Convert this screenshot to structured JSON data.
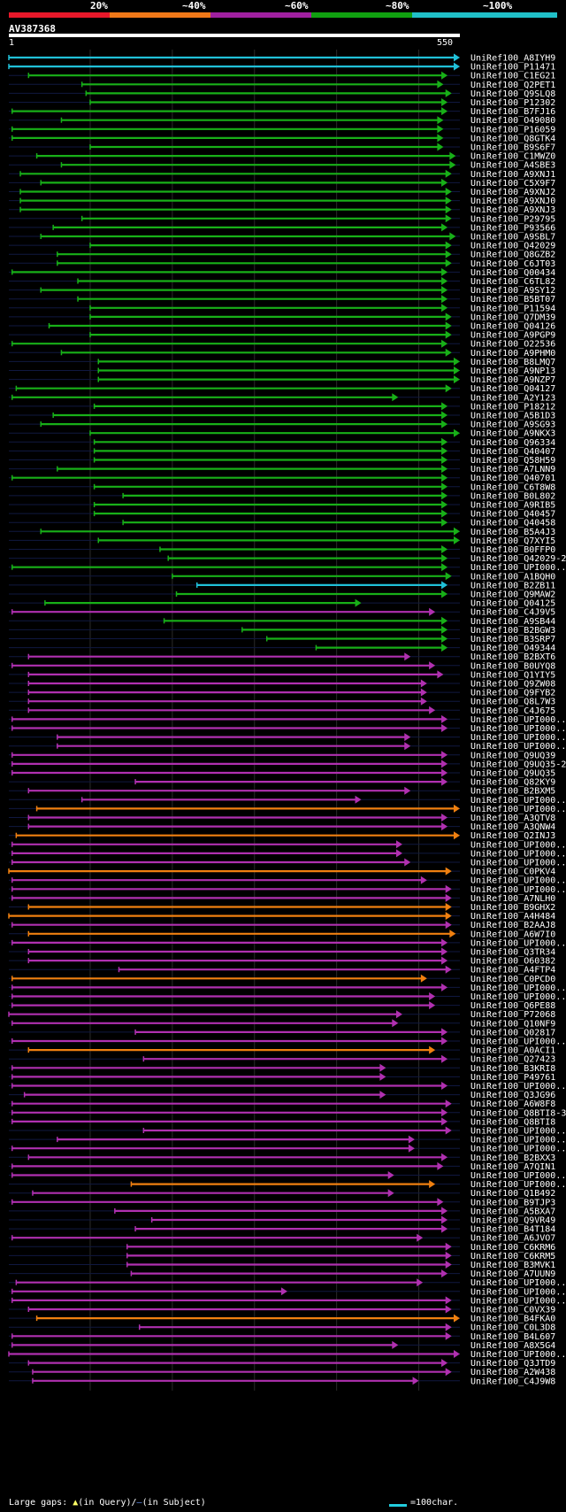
{
  "legend": {
    "labels": [
      "20%",
      "~40%",
      "~60%",
      "~80%",
      "~100%"
    ],
    "colors": [
      "#e8182a",
      "#f07818",
      "#a020a0",
      "#10a010",
      "#20c0c8"
    ]
  },
  "query": {
    "name": "AV387368",
    "start": "1",
    "end": "550"
  },
  "footer": {
    "gap_prefix": "Large gaps:",
    "gap_query": "(in Query)/",
    "gap_subject": "(in Subject)",
    "scale_label": "=100char."
  },
  "chart_data": {
    "type": "alignment-overview",
    "query_length": 550,
    "hits": [
      {
        "name": "UniRef100_A8IYH9",
        "start": 1,
        "end": 550,
        "color": "cyan"
      },
      {
        "name": "UniRef100_P11471",
        "start": 1,
        "end": 550,
        "color": "cyan"
      },
      {
        "name": "UniRef100_C1EG21",
        "start": 25,
        "end": 535,
        "color": "green"
      },
      {
        "name": "UniRef100_Q2PET1",
        "start": 90,
        "end": 530,
        "color": "green"
      },
      {
        "name": "UniRef100_Q9SLQ8",
        "start": 95,
        "end": 540,
        "color": "green"
      },
      {
        "name": "UniRef100_P12302",
        "start": 100,
        "end": 535,
        "color": "green"
      },
      {
        "name": "UniRef100_B7FJ16",
        "start": 5,
        "end": 535,
        "color": "green"
      },
      {
        "name": "UniRef100_O49080",
        "start": 65,
        "end": 530,
        "color": "green"
      },
      {
        "name": "UniRef100_P16059",
        "start": 5,
        "end": 530,
        "color": "green"
      },
      {
        "name": "UniRef100_Q8GTK4",
        "start": 5,
        "end": 530,
        "color": "green"
      },
      {
        "name": "UniRef100_B9S6F7",
        "start": 100,
        "end": 530,
        "color": "green"
      },
      {
        "name": "UniRef100_C1MWZ0",
        "start": 35,
        "end": 545,
        "color": "green"
      },
      {
        "name": "UniRef100_A4SBE3",
        "start": 65,
        "end": 545,
        "color": "green"
      },
      {
        "name": "UniRef100_A9XNJ1",
        "start": 15,
        "end": 540,
        "color": "green"
      },
      {
        "name": "UniRef100_C5X9F7",
        "start": 40,
        "end": 535,
        "color": "green"
      },
      {
        "name": "UniRef100_A9XNJ2",
        "start": 15,
        "end": 540,
        "color": "green"
      },
      {
        "name": "UniRef100_A9XNJ0",
        "start": 15,
        "end": 540,
        "color": "green"
      },
      {
        "name": "UniRef100_A9XNJ3",
        "start": 15,
        "end": 540,
        "color": "green"
      },
      {
        "name": "UniRef100_P29795",
        "start": 90,
        "end": 540,
        "color": "green"
      },
      {
        "name": "UniRef100_P93566",
        "start": 55,
        "end": 535,
        "color": "green"
      },
      {
        "name": "UniRef100_A9SBL7",
        "start": 40,
        "end": 545,
        "color": "green"
      },
      {
        "name": "UniRef100_Q42029",
        "start": 100,
        "end": 540,
        "color": "green"
      },
      {
        "name": "UniRef100_Q8GZB2",
        "start": 60,
        "end": 540,
        "color": "green"
      },
      {
        "name": "UniRef100_C6JT03",
        "start": 60,
        "end": 540,
        "color": "green"
      },
      {
        "name": "UniRef100_Q00434",
        "start": 5,
        "end": 535,
        "color": "green"
      },
      {
        "name": "UniRef100_C6TL82",
        "start": 85,
        "end": 535,
        "color": "green"
      },
      {
        "name": "UniRef100_A9SY12",
        "start": 40,
        "end": 535,
        "color": "green"
      },
      {
        "name": "UniRef100_B5BT07",
        "start": 85,
        "end": 535,
        "color": "green"
      },
      {
        "name": "UniRef100_P11594",
        "start": 100,
        "end": 535,
        "color": "green"
      },
      {
        "name": "UniRef100_Q7DM39",
        "start": 100,
        "end": 540,
        "color": "green"
      },
      {
        "name": "UniRef100_Q04126",
        "start": 50,
        "end": 540,
        "color": "green"
      },
      {
        "name": "UniRef100_A9PGP9",
        "start": 100,
        "end": 540,
        "color": "green"
      },
      {
        "name": "UniRef100_O22536",
        "start": 5,
        "end": 535,
        "color": "green"
      },
      {
        "name": "UniRef100_A9PHM0",
        "start": 65,
        "end": 540,
        "color": "green"
      },
      {
        "name": "UniRef100_B8LMQ7",
        "start": 110,
        "end": 550,
        "color": "green"
      },
      {
        "name": "UniRef100_A9NP13",
        "start": 110,
        "end": 550,
        "color": "green"
      },
      {
        "name": "UniRef100_A9NZP7",
        "start": 110,
        "end": 550,
        "color": "green"
      },
      {
        "name": "UniRef100_Q04127",
        "start": 10,
        "end": 540,
        "color": "green"
      },
      {
        "name": "UniRef100_A2Y123",
        "start": 5,
        "end": 475,
        "color": "green"
      },
      {
        "name": "UniRef100_P18212",
        "start": 105,
        "end": 535,
        "color": "green"
      },
      {
        "name": "UniRef100_A5B1D3",
        "start": 55,
        "end": 535,
        "color": "green"
      },
      {
        "name": "UniRef100_A9SG93",
        "start": 40,
        "end": 535,
        "color": "green"
      },
      {
        "name": "UniRef100_A9NKX3",
        "start": 100,
        "end": 550,
        "color": "green"
      },
      {
        "name": "UniRef100_Q96334",
        "start": 105,
        "end": 535,
        "color": "green"
      },
      {
        "name": "UniRef100_Q40407",
        "start": 105,
        "end": 535,
        "color": "green"
      },
      {
        "name": "UniRef100_Q58H59",
        "start": 105,
        "end": 535,
        "color": "green"
      },
      {
        "name": "UniRef100_A7LNN9",
        "start": 60,
        "end": 535,
        "color": "green"
      },
      {
        "name": "UniRef100_Q40701",
        "start": 5,
        "end": 535,
        "color": "green"
      },
      {
        "name": "UniRef100_C6T8W8",
        "start": 105,
        "end": 535,
        "color": "green"
      },
      {
        "name": "UniRef100_B0L802",
        "start": 140,
        "end": 535,
        "color": "green"
      },
      {
        "name": "UniRef100_A9RIB5",
        "start": 105,
        "end": 535,
        "color": "green"
      },
      {
        "name": "UniRef100_Q40457",
        "start": 105,
        "end": 535,
        "color": "green"
      },
      {
        "name": "UniRef100_Q40458",
        "start": 140,
        "end": 535,
        "color": "green"
      },
      {
        "name": "UniRef100_B5A4J3",
        "start": 40,
        "end": 550,
        "color": "green"
      },
      {
        "name": "UniRef100_Q7XYI5",
        "start": 110,
        "end": 550,
        "color": "green"
      },
      {
        "name": "UniRef100_B0FFP0",
        "start": 185,
        "end": 535,
        "color": "green"
      },
      {
        "name": "UniRef100_Q42029-2",
        "start": 195,
        "end": 535,
        "color": "green"
      },
      {
        "name": "UniRef100_UPI000..",
        "start": 5,
        "end": 535,
        "color": "green"
      },
      {
        "name": "UniRef100_A1BQH0",
        "start": 200,
        "end": 540,
        "color": "green"
      },
      {
        "name": "UniRef100_B2ZB11",
        "start": 230,
        "end": 535,
        "color": "cyan"
      },
      {
        "name": "UniRef100_Q9MAW2",
        "start": 205,
        "end": 535,
        "color": "green"
      },
      {
        "name": "UniRef100_Q04125",
        "start": 45,
        "end": 430,
        "color": "green"
      },
      {
        "name": "UniRef100_C4J9V5",
        "start": 5,
        "end": 520,
        "color": "purple"
      },
      {
        "name": "UniRef100_A9SB44",
        "start": 190,
        "end": 535,
        "color": "green"
      },
      {
        "name": "UniRef100_B2BGW3",
        "start": 285,
        "end": 535,
        "color": "green"
      },
      {
        "name": "UniRef100_B3SRP7",
        "start": 315,
        "end": 535,
        "color": "green"
      },
      {
        "name": "UniRef100_O49344",
        "start": 375,
        "end": 535,
        "color": "green"
      },
      {
        "name": "UniRef100_B2BXT6",
        "start": 25,
        "end": 490,
        "color": "purple"
      },
      {
        "name": "UniRef100_B0UYQ8",
        "start": 5,
        "end": 520,
        "color": "purple"
      },
      {
        "name": "UniRef100_Q1YIY5",
        "start": 25,
        "end": 530,
        "color": "purple"
      },
      {
        "name": "UniRef100_Q9ZW08",
        "start": 25,
        "end": 510,
        "color": "purple"
      },
      {
        "name": "UniRef100_Q9FYB2",
        "start": 25,
        "end": 510,
        "color": "purple"
      },
      {
        "name": "UniRef100_Q8L7W3",
        "start": 25,
        "end": 510,
        "color": "purple"
      },
      {
        "name": "UniRef100_C4J675",
        "start": 25,
        "end": 520,
        "color": "purple"
      },
      {
        "name": "UniRef100_UPI000..",
        "start": 5,
        "end": 535,
        "color": "purple"
      },
      {
        "name": "UniRef100_UPI000..",
        "start": 5,
        "end": 535,
        "color": "purple"
      },
      {
        "name": "UniRef100_UPI000..",
        "start": 60,
        "end": 490,
        "color": "purple"
      },
      {
        "name": "UniRef100_UPI000..",
        "start": 60,
        "end": 490,
        "color": "purple"
      },
      {
        "name": "UniRef100_Q9UQ39",
        "start": 5,
        "end": 535,
        "color": "purple"
      },
      {
        "name": "UniRef100_Q9UQ35-2",
        "start": 5,
        "end": 535,
        "color": "purple"
      },
      {
        "name": "UniRef100_Q9UQ35",
        "start": 5,
        "end": 535,
        "color": "purple"
      },
      {
        "name": "UniRef100_Q82KY9",
        "start": 155,
        "end": 535,
        "color": "purple"
      },
      {
        "name": "UniRef100_B2BXM5",
        "start": 25,
        "end": 490,
        "color": "purple"
      },
      {
        "name": "UniRef100_UPI000..",
        "start": 90,
        "end": 430,
        "color": "purple"
      },
      {
        "name": "UniRef100_UPI000..",
        "start": 35,
        "end": 550,
        "color": "orange"
      },
      {
        "name": "UniRef100_A3QTV8",
        "start": 25,
        "end": 535,
        "color": "purple"
      },
      {
        "name": "UniRef100_A3QNW4",
        "start": 25,
        "end": 535,
        "color": "purple"
      },
      {
        "name": "UniRef100_Q2INJ3",
        "start": 10,
        "end": 550,
        "color": "orange"
      },
      {
        "name": "UniRef100_UPI000..",
        "start": 5,
        "end": 480,
        "color": "purple"
      },
      {
        "name": "UniRef100_UPI000..",
        "start": 5,
        "end": 480,
        "color": "purple"
      },
      {
        "name": "UniRef100_UPI000..",
        "start": 5,
        "end": 490,
        "color": "purple"
      },
      {
        "name": "UniRef100_C0PKV4",
        "start": 1,
        "end": 540,
        "color": "orange"
      },
      {
        "name": "UniRef100_UPI000..",
        "start": 5,
        "end": 510,
        "color": "purple"
      },
      {
        "name": "UniRef100_UPI000..",
        "start": 5,
        "end": 540,
        "color": "purple"
      },
      {
        "name": "UniRef100_A7NLH0",
        "start": 5,
        "end": 540,
        "color": "purple"
      },
      {
        "name": "UniRef100_B9GHX2",
        "start": 25,
        "end": 540,
        "color": "orange"
      },
      {
        "name": "UniRef100_A4H484",
        "start": 1,
        "end": 540,
        "color": "orange"
      },
      {
        "name": "UniRef100_B2AAJ8",
        "start": 5,
        "end": 540,
        "color": "purple"
      },
      {
        "name": "UniRef100_A6W7I0",
        "start": 25,
        "end": 545,
        "color": "orange"
      },
      {
        "name": "UniRef100_UPI000..",
        "start": 5,
        "end": 535,
        "color": "purple"
      },
      {
        "name": "UniRef100_Q3TR34",
        "start": 25,
        "end": 535,
        "color": "purple"
      },
      {
        "name": "UniRef100_O60382",
        "start": 25,
        "end": 535,
        "color": "purple"
      },
      {
        "name": "UniRef100_A4FTP4",
        "start": 135,
        "end": 540,
        "color": "purple"
      },
      {
        "name": "UniRef100_C0PCD0",
        "start": 5,
        "end": 510,
        "color": "orange"
      },
      {
        "name": "UniRef100_UPI000..",
        "start": 5,
        "end": 535,
        "color": "purple"
      },
      {
        "name": "UniRef100_UPI000..",
        "start": 5,
        "end": 520,
        "color": "purple"
      },
      {
        "name": "UniRef100_Q6PE88",
        "start": 5,
        "end": 520,
        "color": "purple"
      },
      {
        "name": "UniRef100_P72068",
        "start": 1,
        "end": 480,
        "color": "purple"
      },
      {
        "name": "UniRef100_Q10NF9",
        "start": 5,
        "end": 475,
        "color": "purple"
      },
      {
        "name": "UniRef100_Q02817",
        "start": 155,
        "end": 535,
        "color": "purple"
      },
      {
        "name": "UniRef100_UPI000..",
        "start": 5,
        "end": 535,
        "color": "purple"
      },
      {
        "name": "UniRef100_A0ACI1",
        "start": 25,
        "end": 520,
        "color": "orange"
      },
      {
        "name": "UniRef100_Q27423",
        "start": 165,
        "end": 535,
        "color": "purple"
      },
      {
        "name": "UniRef100_B3KRI8",
        "start": 5,
        "end": 460,
        "color": "purple"
      },
      {
        "name": "UniRef100_P49761",
        "start": 5,
        "end": 460,
        "color": "purple"
      },
      {
        "name": "UniRef100_UPI000..",
        "start": 5,
        "end": 535,
        "color": "purple"
      },
      {
        "name": "UniRef100_Q3JG96",
        "start": 20,
        "end": 460,
        "color": "purple"
      },
      {
        "name": "UniRef100_A6W8F8",
        "start": 5,
        "end": 540,
        "color": "purple"
      },
      {
        "name": "UniRef100_Q8BTI8-3",
        "start": 5,
        "end": 535,
        "color": "purple"
      },
      {
        "name": "UniRef100_Q8BTI8",
        "start": 5,
        "end": 535,
        "color": "purple"
      },
      {
        "name": "UniRef100_UPI000..",
        "start": 165,
        "end": 540,
        "color": "purple"
      },
      {
        "name": "UniRef100_UPI000..",
        "start": 60,
        "end": 495,
        "color": "purple"
      },
      {
        "name": "UniRef100_UPI000..",
        "start": 5,
        "end": 495,
        "color": "purple"
      },
      {
        "name": "UniRef100_B2BXX3",
        "start": 25,
        "end": 535,
        "color": "purple"
      },
      {
        "name": "UniRef100_A7QIN1",
        "start": 5,
        "end": 530,
        "color": "purple"
      },
      {
        "name": "UniRef100_UPI000..",
        "start": 5,
        "end": 470,
        "color": "purple"
      },
      {
        "name": "UniRef100_UPI000..",
        "start": 150,
        "end": 520,
        "color": "orange"
      },
      {
        "name": "UniRef100_Q1B492",
        "start": 30,
        "end": 470,
        "color": "purple"
      },
      {
        "name": "UniRef100_B9TJP3",
        "start": 5,
        "end": 530,
        "color": "purple"
      },
      {
        "name": "UniRef100_A5BXA7",
        "start": 130,
        "end": 535,
        "color": "purple"
      },
      {
        "name": "UniRef100_Q9VR49",
        "start": 175,
        "end": 535,
        "color": "purple"
      },
      {
        "name": "UniRef100_B4T184",
        "start": 155,
        "end": 535,
        "color": "purple"
      },
      {
        "name": "UniRef100_A6JVO7",
        "start": 5,
        "end": 505,
        "color": "purple"
      },
      {
        "name": "UniRef100_C6KRM6",
        "start": 145,
        "end": 540,
        "color": "purple"
      },
      {
        "name": "UniRef100_C6KRM5",
        "start": 145,
        "end": 540,
        "color": "purple"
      },
      {
        "name": "UniRef100_B3MVK1",
        "start": 145,
        "end": 540,
        "color": "purple"
      },
      {
        "name": "UniRef100_A7UUN9",
        "start": 150,
        "end": 535,
        "color": "purple"
      },
      {
        "name": "UniRef100_UPI000..",
        "start": 10,
        "end": 505,
        "color": "purple"
      },
      {
        "name": "UniRef100_UPI000..",
        "start": 5,
        "end": 340,
        "color": "purple"
      },
      {
        "name": "UniRef100_UPI000..",
        "start": 5,
        "end": 540,
        "color": "purple"
      },
      {
        "name": "UniRef100_C0VX39",
        "start": 25,
        "end": 540,
        "color": "purple"
      },
      {
        "name": "UniRef100_B4FKA0",
        "start": 35,
        "end": 550,
        "color": "orange"
      },
      {
        "name": "UniRef100_C0L3D8",
        "start": 160,
        "end": 540,
        "color": "purple"
      },
      {
        "name": "UniRef100_B4L607",
        "start": 5,
        "end": 540,
        "color": "purple"
      },
      {
        "name": "UniRef100_A8X5G4",
        "start": 5,
        "end": 475,
        "color": "purple"
      },
      {
        "name": "UniRef100_UPI000..",
        "start": 1,
        "end": 550,
        "color": "purple"
      },
      {
        "name": "UniRef100_Q3JTD9",
        "start": 25,
        "end": 535,
        "color": "purple"
      },
      {
        "name": "UniRef100_A2W438",
        "start": 30,
        "end": 540,
        "color": "purple"
      },
      {
        "name": "UniRef100_C4J9W8",
        "start": 30,
        "end": 500,
        "color": "purple"
      }
    ]
  }
}
